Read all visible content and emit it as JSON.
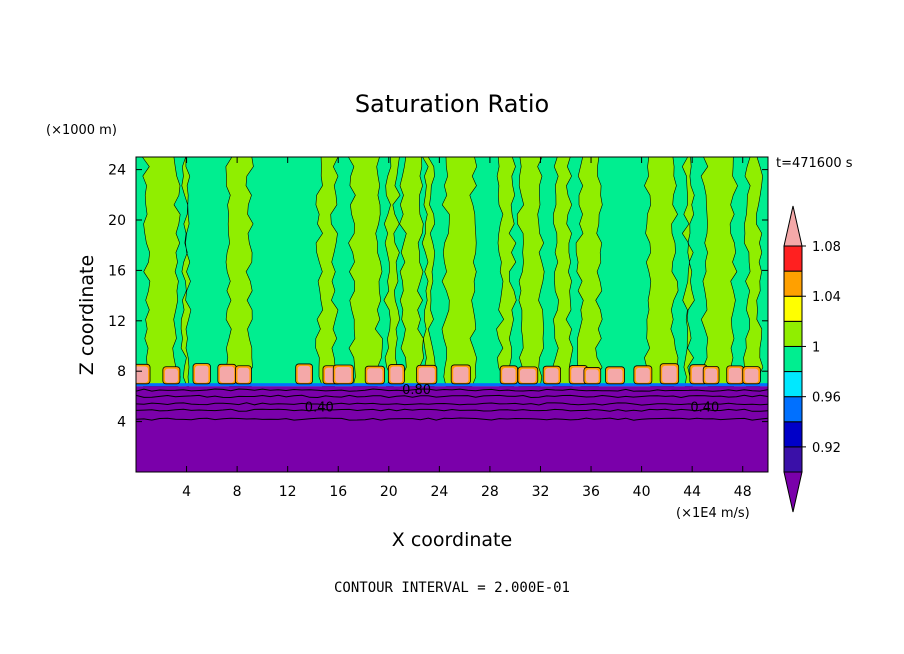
{
  "chart_data": {
    "type": "heatmap",
    "title": "Saturation Ratio",
    "xlabel": "X coordinate",
    "ylabel": "Z coordinate",
    "x_unit": "(×1E4 m/s)",
    "y_unit": "(×1000 m)",
    "time_label": "t=471600 s",
    "footer": "CONTOUR INTERVAL = 2.000E-01",
    "xlim": [
      0,
      50
    ],
    "ylim": [
      0,
      25
    ],
    "x_ticks": [
      4,
      8,
      12,
      16,
      20,
      24,
      28,
      32,
      36,
      40,
      44,
      48
    ],
    "y_ticks": [
      4,
      8,
      12,
      16,
      20,
      24
    ],
    "contour_labels": [
      "0.40",
      "0.80",
      "0.40"
    ],
    "colorbar": {
      "tick_labels": [
        "1.08",
        "1.04",
        "1",
        "0.96",
        "0.92"
      ],
      "levels": [
        {
          "value": 0.9,
          "color": "#7a00aa"
        },
        {
          "value": 0.92,
          "color": "#3a10a8"
        },
        {
          "value": 0.94,
          "color": "#0000c8"
        },
        {
          "value": 0.96,
          "color": "#0070ff"
        },
        {
          "value": 0.98,
          "color": "#00e8ff"
        },
        {
          "value": 1.0,
          "color": "#00ee90"
        },
        {
          "value": 1.02,
          "color": "#90ee00"
        },
        {
          "value": 1.04,
          "color": "#ffff00"
        },
        {
          "value": 1.06,
          "color": "#ffa000"
        },
        {
          "value": 1.08,
          "color": "#ff2020"
        },
        {
          "value": 1.1,
          "color": "#f4a8a8"
        }
      ]
    },
    "regions": {
      "below_cloud_base": {
        "z_range": [
          0,
          6.8
        ],
        "value": 0.4,
        "color": "#7a00aa"
      },
      "upper_background": {
        "z_range": [
          6.8,
          25
        ],
        "value": 0.99,
        "color": "#00ee90"
      },
      "supersaturated_columns": {
        "value": 1.01,
        "color": "#90ee00",
        "x_intervals": [
          [
            0.8,
            3.2
          ],
          [
            3.8,
            4.2
          ],
          [
            7.4,
            9.0
          ],
          [
            14.5,
            15.7
          ],
          [
            17.1,
            19.2
          ],
          [
            19.9,
            20.6
          ],
          [
            21.1,
            22.5
          ],
          [
            22.9,
            23.4
          ],
          [
            24.5,
            26.7
          ],
          [
            28.8,
            29.8
          ],
          [
            30.4,
            32.0
          ],
          [
            33.2,
            34.3
          ],
          [
            35.1,
            36.6
          ],
          [
            40.5,
            42.6
          ],
          [
            43.5,
            43.9
          ],
          [
            45.0,
            47.3
          ],
          [
            48.3,
            49.3
          ]
        ]
      },
      "cloud_cells": {
        "value": 1.1,
        "color": "#f4a8a8",
        "x_centers": [
          0.4,
          2.8,
          5.2,
          7.2,
          8.5,
          13.3,
          15.5,
          16.4,
          18.9,
          20.6,
          23.0,
          25.7,
          29.5,
          31.0,
          32.9,
          35.0,
          36.1,
          37.9,
          40.1,
          42.2,
          44.5,
          45.5,
          47.4,
          48.7
        ]
      }
    }
  }
}
